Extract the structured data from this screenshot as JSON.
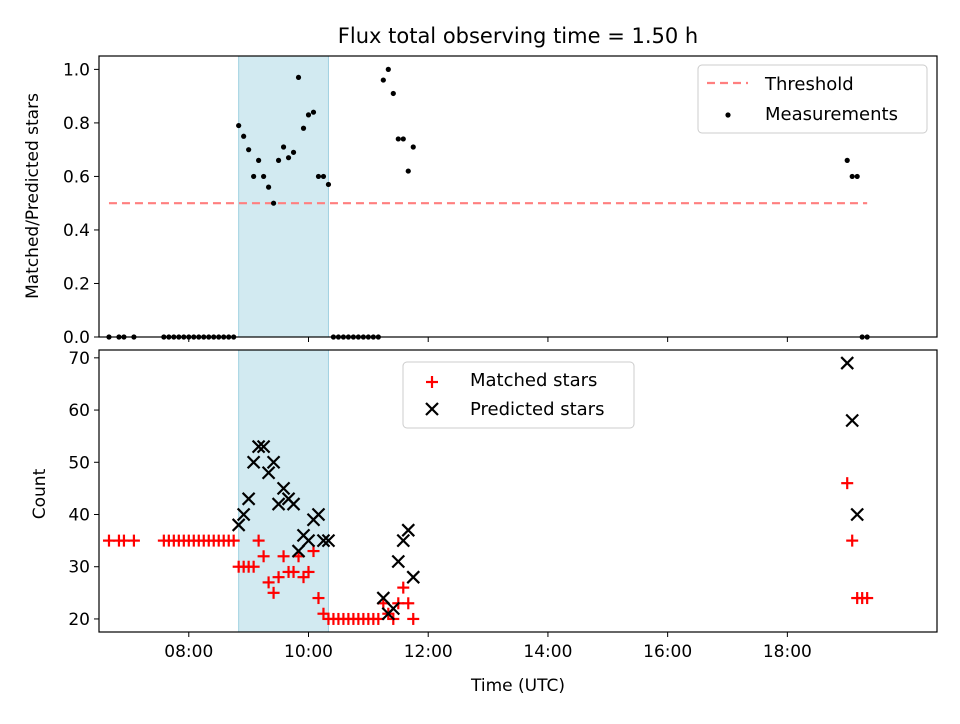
{
  "title": "Flux total observing time = 1.50 h",
  "colors": {
    "threshold": "#ff7f7f",
    "measurement": "#000000",
    "matched": "#ff0000",
    "predicted": "#000000",
    "span": "#add8e6"
  },
  "chart_data": [
    {
      "type": "scatter",
      "ylabel": "Matched/Predicted stars",
      "xlim": [
        "06:30",
        "20:30"
      ],
      "ylim": [
        0,
        1.05
      ],
      "yticks": [
        "0.0",
        "0.2",
        "0.4",
        "0.6",
        "0.8",
        "1.0"
      ],
      "grid": false,
      "legend_position": "top-right",
      "highlight_span": [
        "08:50",
        "10:20"
      ],
      "series": [
        {
          "name": "Threshold",
          "style": "dashed-line",
          "points": [
            [
              "06:40",
              0.5
            ],
            [
              "19:20",
              0.5
            ]
          ]
        },
        {
          "name": "Measurements",
          "style": "dot",
          "points": [
            [
              "06:40",
              0
            ],
            [
              "06:50",
              0
            ],
            [
              "06:55",
              0
            ],
            [
              "07:05",
              0
            ],
            [
              "07:35",
              0
            ],
            [
              "07:40",
              0
            ],
            [
              "07:45",
              0
            ],
            [
              "07:50",
              0
            ],
            [
              "07:55",
              0
            ],
            [
              "08:00",
              0
            ],
            [
              "08:05",
              0
            ],
            [
              "08:10",
              0
            ],
            [
              "08:15",
              0
            ],
            [
              "08:20",
              0
            ],
            [
              "08:25",
              0
            ],
            [
              "08:30",
              0
            ],
            [
              "08:35",
              0
            ],
            [
              "08:40",
              0
            ],
            [
              "08:45",
              0
            ],
            [
              "08:50",
              0.79
            ],
            [
              "08:55",
              0.75
            ],
            [
              "09:00",
              0.7
            ],
            [
              "09:05",
              0.6
            ],
            [
              "09:10",
              0.66
            ],
            [
              "09:15",
              0.6
            ],
            [
              "09:20",
              0.56
            ],
            [
              "09:25",
              0.5
            ],
            [
              "09:30",
              0.66
            ],
            [
              "09:35",
              0.71
            ],
            [
              "09:40",
              0.67
            ],
            [
              "09:45",
              0.69
            ],
            [
              "09:50",
              0.97
            ],
            [
              "09:55",
              0.78
            ],
            [
              "10:00",
              0.83
            ],
            [
              "10:05",
              0.84
            ],
            [
              "10:10",
              0.6
            ],
            [
              "10:15",
              0.6
            ],
            [
              "10:20",
              0.57
            ],
            [
              "10:25",
              0
            ],
            [
              "10:30",
              0
            ],
            [
              "10:35",
              0
            ],
            [
              "10:40",
              0
            ],
            [
              "10:45",
              0
            ],
            [
              "10:50",
              0
            ],
            [
              "10:55",
              0
            ],
            [
              "11:00",
              0
            ],
            [
              "11:05",
              0
            ],
            [
              "11:10",
              0
            ],
            [
              "11:15",
              0.96
            ],
            [
              "11:20",
              1.0
            ],
            [
              "11:25",
              0.91
            ],
            [
              "11:30",
              0.74
            ],
            [
              "11:35",
              0.74
            ],
            [
              "11:40",
              0.62
            ],
            [
              "11:45",
              0.71
            ],
            [
              "19:00",
              0.66
            ],
            [
              "19:05",
              0.6
            ],
            [
              "19:10",
              0.6
            ],
            [
              "19:15",
              0
            ],
            [
              "19:20",
              0
            ]
          ]
        }
      ]
    },
    {
      "type": "scatter",
      "xlabel": "Time (UTC)",
      "ylabel": "Count",
      "xlim": [
        "06:30",
        "20:30"
      ],
      "ylim": [
        17.5,
        71.5
      ],
      "xticks": [
        "08:00",
        "10:00",
        "12:00",
        "14:00",
        "16:00",
        "18:00"
      ],
      "yticks": [
        "20",
        "30",
        "40",
        "50",
        "60",
        "70"
      ],
      "grid": false,
      "legend_position": "top-center",
      "highlight_span": [
        "08:50",
        "10:20"
      ],
      "series": [
        {
          "name": "Matched stars",
          "marker": "plus",
          "points": [
            [
              "06:40",
              35
            ],
            [
              "06:50",
              35
            ],
            [
              "06:55",
              35
            ],
            [
              "07:05",
              35
            ],
            [
              "07:35",
              35
            ],
            [
              "07:40",
              35
            ],
            [
              "07:45",
              35
            ],
            [
              "07:50",
              35
            ],
            [
              "07:55",
              35
            ],
            [
              "08:00",
              35
            ],
            [
              "08:05",
              35
            ],
            [
              "08:10",
              35
            ],
            [
              "08:15",
              35
            ],
            [
              "08:20",
              35
            ],
            [
              "08:25",
              35
            ],
            [
              "08:30",
              35
            ],
            [
              "08:35",
              35
            ],
            [
              "08:40",
              35
            ],
            [
              "08:45",
              35
            ],
            [
              "08:50",
              30
            ],
            [
              "08:55",
              30
            ],
            [
              "09:00",
              30
            ],
            [
              "09:05",
              30
            ],
            [
              "09:10",
              35
            ],
            [
              "09:15",
              32
            ],
            [
              "09:20",
              27
            ],
            [
              "09:25",
              25
            ],
            [
              "09:30",
              28
            ],
            [
              "09:35",
              32
            ],
            [
              "09:40",
              29
            ],
            [
              "09:45",
              29
            ],
            [
              "09:50",
              32
            ],
            [
              "09:55",
              28
            ],
            [
              "10:00",
              29
            ],
            [
              "10:05",
              33
            ],
            [
              "10:10",
              24
            ],
            [
              "10:15",
              21
            ],
            [
              "10:20",
              20
            ],
            [
              "10:25",
              20
            ],
            [
              "10:30",
              20
            ],
            [
              "10:35",
              20
            ],
            [
              "10:40",
              20
            ],
            [
              "10:45",
              20
            ],
            [
              "10:50",
              20
            ],
            [
              "10:55",
              20
            ],
            [
              "11:00",
              20
            ],
            [
              "11:05",
              20
            ],
            [
              "11:10",
              20
            ],
            [
              "11:15",
              23
            ],
            [
              "11:20",
              21
            ],
            [
              "11:25",
              20
            ],
            [
              "11:30",
              23
            ],
            [
              "11:35",
              26
            ],
            [
              "11:40",
              23
            ],
            [
              "11:45",
              20
            ],
            [
              "19:00",
              46
            ],
            [
              "19:05",
              35
            ],
            [
              "19:10",
              24
            ],
            [
              "19:15",
              24
            ],
            [
              "19:20",
              24
            ]
          ]
        },
        {
          "name": "Predicted stars",
          "marker": "x",
          "points": [
            [
              "08:50",
              38
            ],
            [
              "08:55",
              40
            ],
            [
              "09:00",
              43
            ],
            [
              "09:05",
              50
            ],
            [
              "09:10",
              53
            ],
            [
              "09:15",
              53
            ],
            [
              "09:20",
              48
            ],
            [
              "09:25",
              50
            ],
            [
              "09:30",
              42
            ],
            [
              "09:35",
              45
            ],
            [
              "09:40",
              43
            ],
            [
              "09:45",
              42
            ],
            [
              "09:50",
              33
            ],
            [
              "09:55",
              36
            ],
            [
              "10:00",
              35
            ],
            [
              "10:05",
              39
            ],
            [
              "10:10",
              40
            ],
            [
              "10:15",
              35
            ],
            [
              "10:20",
              35
            ],
            [
              "11:15",
              24
            ],
            [
              "11:20",
              21
            ],
            [
              "11:25",
              22
            ],
            [
              "11:30",
              31
            ],
            [
              "11:35",
              35
            ],
            [
              "11:40",
              37
            ],
            [
              "11:45",
              28
            ],
            [
              "19:00",
              69
            ],
            [
              "19:05",
              58
            ],
            [
              "19:10",
              40
            ]
          ]
        }
      ]
    }
  ]
}
